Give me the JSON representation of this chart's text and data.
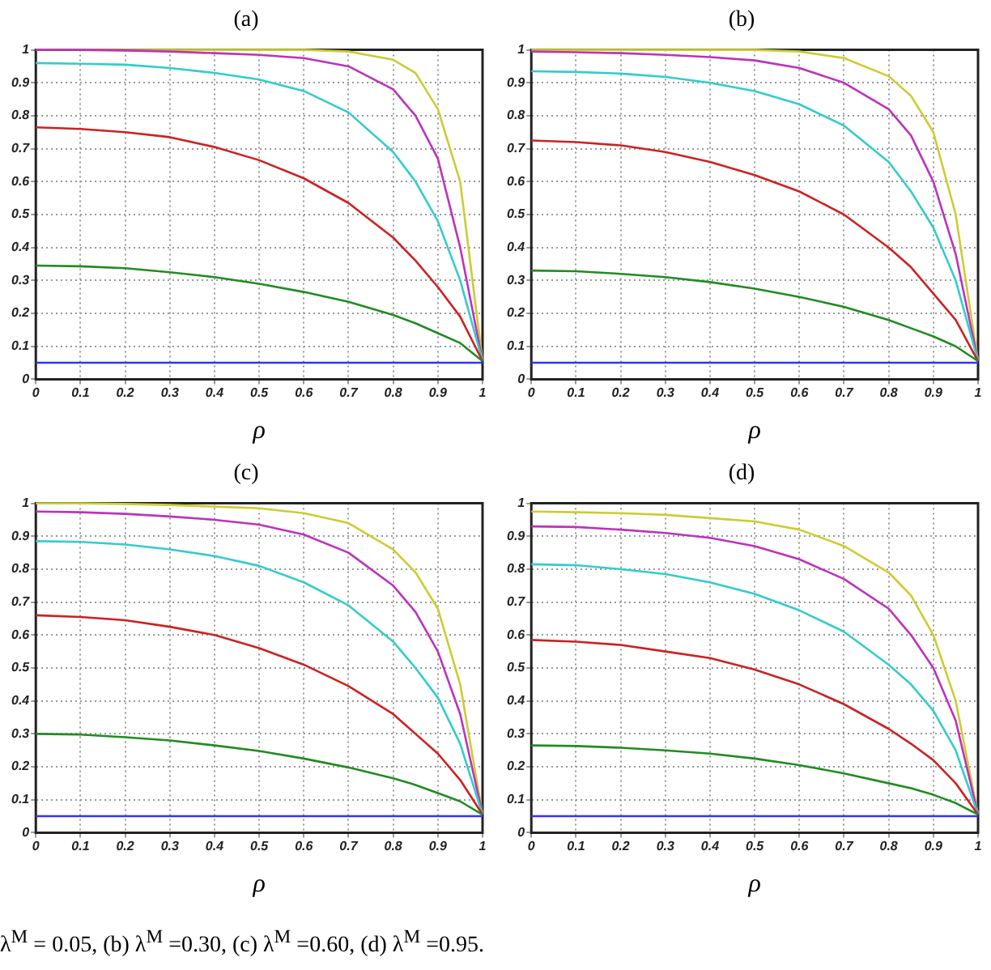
{
  "chart_data": [
    {
      "type": "line",
      "title": "(a)",
      "xlabel": "ρ",
      "x": [
        0,
        0.1,
        0.2,
        0.3,
        0.4,
        0.5,
        0.6,
        0.7,
        0.8,
        0.85,
        0.9,
        0.95,
        1
      ],
      "xlim": [
        0,
        1
      ],
      "xticks": [
        0,
        0.1,
        0.2,
        0.3,
        0.4,
        0.5,
        0.6,
        0.7,
        0.8,
        0.9,
        1
      ],
      "ylim": [
        0,
        1
      ],
      "yticks": [
        0,
        0.1,
        0.2,
        0.3,
        0.4,
        0.5,
        0.6,
        0.7,
        0.8,
        0.9,
        1
      ],
      "grid": true,
      "marker": "none",
      "line_style": "solid",
      "series": [
        {
          "color": "#3333ff",
          "values": [
            0.05,
            0.05,
            0.05,
            0.05,
            0.05,
            0.05,
            0.05,
            0.05,
            0.05,
            0.05,
            0.05,
            0.05,
            0.05
          ]
        },
        {
          "color": "#228b22",
          "values": [
            0.345,
            0.343,
            0.337,
            0.325,
            0.31,
            0.29,
            0.265,
            0.235,
            0.195,
            0.17,
            0.14,
            0.11,
            0.055
          ]
        },
        {
          "color": "#cc2222",
          "values": [
            0.765,
            0.76,
            0.75,
            0.735,
            0.705,
            0.665,
            0.61,
            0.535,
            0.43,
            0.36,
            0.28,
            0.19,
            0.055
          ]
        },
        {
          "color": "#33cccc",
          "values": [
            0.96,
            0.958,
            0.955,
            0.945,
            0.93,
            0.91,
            0.875,
            0.81,
            0.69,
            0.6,
            0.48,
            0.3,
            0.055
          ]
        },
        {
          "color": "#bb33bb",
          "values": [
            1,
            1,
            0.998,
            0.995,
            0.99,
            0.985,
            0.975,
            0.95,
            0.88,
            0.8,
            0.67,
            0.4,
            0.055
          ]
        },
        {
          "color": "#cccc33",
          "values": [
            1,
            1,
            1,
            1,
            1,
            1,
            1,
            0.995,
            0.97,
            0.93,
            0.82,
            0.6,
            0.055
          ]
        }
      ]
    },
    {
      "type": "line",
      "title": "(b)",
      "xlabel": "ρ",
      "x": [
        0,
        0.1,
        0.2,
        0.3,
        0.4,
        0.5,
        0.6,
        0.7,
        0.8,
        0.85,
        0.9,
        0.95,
        1
      ],
      "xlim": [
        0,
        1
      ],
      "xticks": [
        0,
        0.1,
        0.2,
        0.3,
        0.4,
        0.5,
        0.6,
        0.7,
        0.8,
        0.9,
        1
      ],
      "ylim": [
        0,
        1
      ],
      "yticks": [
        0,
        0.1,
        0.2,
        0.3,
        0.4,
        0.5,
        0.6,
        0.7,
        0.8,
        0.9,
        1
      ],
      "grid": true,
      "marker": "none",
      "line_style": "solid",
      "series": [
        {
          "color": "#3333ff",
          "values": [
            0.05,
            0.05,
            0.05,
            0.05,
            0.05,
            0.05,
            0.05,
            0.05,
            0.05,
            0.05,
            0.05,
            0.05,
            0.05
          ]
        },
        {
          "color": "#228b22",
          "values": [
            0.33,
            0.328,
            0.32,
            0.31,
            0.295,
            0.275,
            0.25,
            0.22,
            0.18,
            0.155,
            0.13,
            0.1,
            0.055
          ]
        },
        {
          "color": "#cc2222",
          "values": [
            0.725,
            0.72,
            0.71,
            0.69,
            0.66,
            0.62,
            0.57,
            0.5,
            0.4,
            0.34,
            0.26,
            0.18,
            0.055
          ]
        },
        {
          "color": "#33cccc",
          "values": [
            0.935,
            0.933,
            0.928,
            0.918,
            0.9,
            0.875,
            0.835,
            0.77,
            0.66,
            0.57,
            0.46,
            0.3,
            0.055
          ]
        },
        {
          "color": "#bb33bb",
          "values": [
            0.995,
            0.993,
            0.99,
            0.985,
            0.978,
            0.968,
            0.945,
            0.9,
            0.82,
            0.74,
            0.6,
            0.38,
            0.055
          ]
        },
        {
          "color": "#cccc33",
          "values": [
            1,
            1,
            1,
            1,
            1,
            1,
            0.995,
            0.975,
            0.92,
            0.86,
            0.75,
            0.5,
            0.055
          ]
        }
      ]
    },
    {
      "type": "line",
      "title": "(c)",
      "xlabel": "ρ",
      "x": [
        0,
        0.1,
        0.2,
        0.3,
        0.4,
        0.5,
        0.6,
        0.7,
        0.8,
        0.85,
        0.9,
        0.95,
        1
      ],
      "xlim": [
        0,
        1
      ],
      "xticks": [
        0,
        0.1,
        0.2,
        0.3,
        0.4,
        0.5,
        0.6,
        0.7,
        0.8,
        0.9,
        1
      ],
      "ylim": [
        0,
        1
      ],
      "yticks": [
        0,
        0.1,
        0.2,
        0.3,
        0.4,
        0.5,
        0.6,
        0.7,
        0.8,
        0.9,
        1
      ],
      "grid": true,
      "marker": "none",
      "line_style": "solid",
      "series": [
        {
          "color": "#3333ff",
          "values": [
            0.05,
            0.05,
            0.05,
            0.05,
            0.05,
            0.05,
            0.05,
            0.05,
            0.05,
            0.05,
            0.05,
            0.05,
            0.05
          ]
        },
        {
          "color": "#228b22",
          "values": [
            0.3,
            0.298,
            0.29,
            0.28,
            0.265,
            0.248,
            0.225,
            0.198,
            0.165,
            0.145,
            0.12,
            0.095,
            0.055
          ]
        },
        {
          "color": "#cc2222",
          "values": [
            0.66,
            0.655,
            0.645,
            0.625,
            0.6,
            0.56,
            0.51,
            0.445,
            0.36,
            0.3,
            0.24,
            0.16,
            0.055
          ]
        },
        {
          "color": "#33cccc",
          "values": [
            0.885,
            0.883,
            0.875,
            0.86,
            0.84,
            0.81,
            0.76,
            0.69,
            0.58,
            0.5,
            0.41,
            0.27,
            0.055
          ]
        },
        {
          "color": "#bb33bb",
          "values": [
            0.975,
            0.973,
            0.968,
            0.96,
            0.95,
            0.935,
            0.905,
            0.85,
            0.75,
            0.67,
            0.55,
            0.36,
            0.055
          ]
        },
        {
          "color": "#cccc33",
          "values": [
            1,
            1,
            0.998,
            0.995,
            0.99,
            0.985,
            0.97,
            0.94,
            0.86,
            0.79,
            0.68,
            0.45,
            0.055
          ]
        }
      ]
    },
    {
      "type": "line",
      "title": "(d)",
      "xlabel": "ρ",
      "x": [
        0,
        0.1,
        0.2,
        0.3,
        0.4,
        0.5,
        0.6,
        0.7,
        0.8,
        0.85,
        0.9,
        0.95,
        1
      ],
      "xlim": [
        0,
        1
      ],
      "xticks": [
        0,
        0.1,
        0.2,
        0.3,
        0.4,
        0.5,
        0.6,
        0.7,
        0.8,
        0.9,
        1
      ],
      "ylim": [
        0,
        1
      ],
      "yticks": [
        0,
        0.1,
        0.2,
        0.3,
        0.4,
        0.5,
        0.6,
        0.7,
        0.8,
        0.9,
        1
      ],
      "grid": true,
      "marker": "none",
      "line_style": "solid",
      "annotations": [
        "λ$^{M}$ = 0.05, (b) λ$^{M}$ =0.30, (c) λ$^{M}$ =0.60, (d) λ$^{M}$ =0.95."
      ],
      "series": [
        {
          "color": "#3333ff",
          "values": [
            0.05,
            0.05,
            0.05,
            0.05,
            0.05,
            0.05,
            0.05,
            0.05,
            0.05,
            0.05,
            0.05,
            0.05,
            0.05
          ]
        },
        {
          "color": "#228b22",
          "values": [
            0.265,
            0.263,
            0.258,
            0.25,
            0.24,
            0.225,
            0.205,
            0.18,
            0.15,
            0.135,
            0.115,
            0.09,
            0.055
          ]
        },
        {
          "color": "#cc2222",
          "values": [
            0.585,
            0.58,
            0.57,
            0.55,
            0.53,
            0.495,
            0.45,
            0.39,
            0.315,
            0.27,
            0.22,
            0.15,
            0.055
          ]
        },
        {
          "color": "#33cccc",
          "values": [
            0.815,
            0.812,
            0.8,
            0.785,
            0.76,
            0.725,
            0.675,
            0.61,
            0.51,
            0.45,
            0.37,
            0.25,
            0.055
          ]
        },
        {
          "color": "#bb33bb",
          "values": [
            0.93,
            0.928,
            0.92,
            0.91,
            0.895,
            0.87,
            0.83,
            0.77,
            0.68,
            0.6,
            0.5,
            0.34,
            0.055
          ]
        },
        {
          "color": "#cccc33",
          "values": [
            0.975,
            0.973,
            0.97,
            0.965,
            0.955,
            0.945,
            0.92,
            0.87,
            0.79,
            0.72,
            0.6,
            0.4,
            0.055
          ]
        }
      ]
    }
  ]
}
